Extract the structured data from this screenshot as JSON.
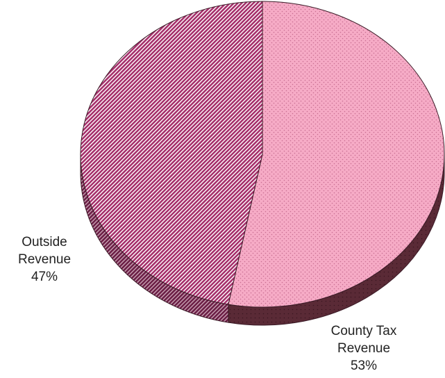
{
  "chart_data": {
    "type": "pie",
    "three_d": true,
    "title": "",
    "slices": [
      {
        "name": "County Tax Revenue",
        "label_lines": [
          "County Tax",
          "Revenue",
          "53%"
        ],
        "value": 53,
        "color": "#f5a8c4",
        "pattern": "dots"
      },
      {
        "name": "Outside Revenue",
        "label_lines": [
          "Outside",
          "Revenue",
          "47%"
        ],
        "value": 47,
        "color": "#b53a78",
        "pattern": "diagonal-stripes"
      }
    ],
    "start_angle_deg": 0,
    "direction": "clockwise",
    "legend": "none"
  }
}
